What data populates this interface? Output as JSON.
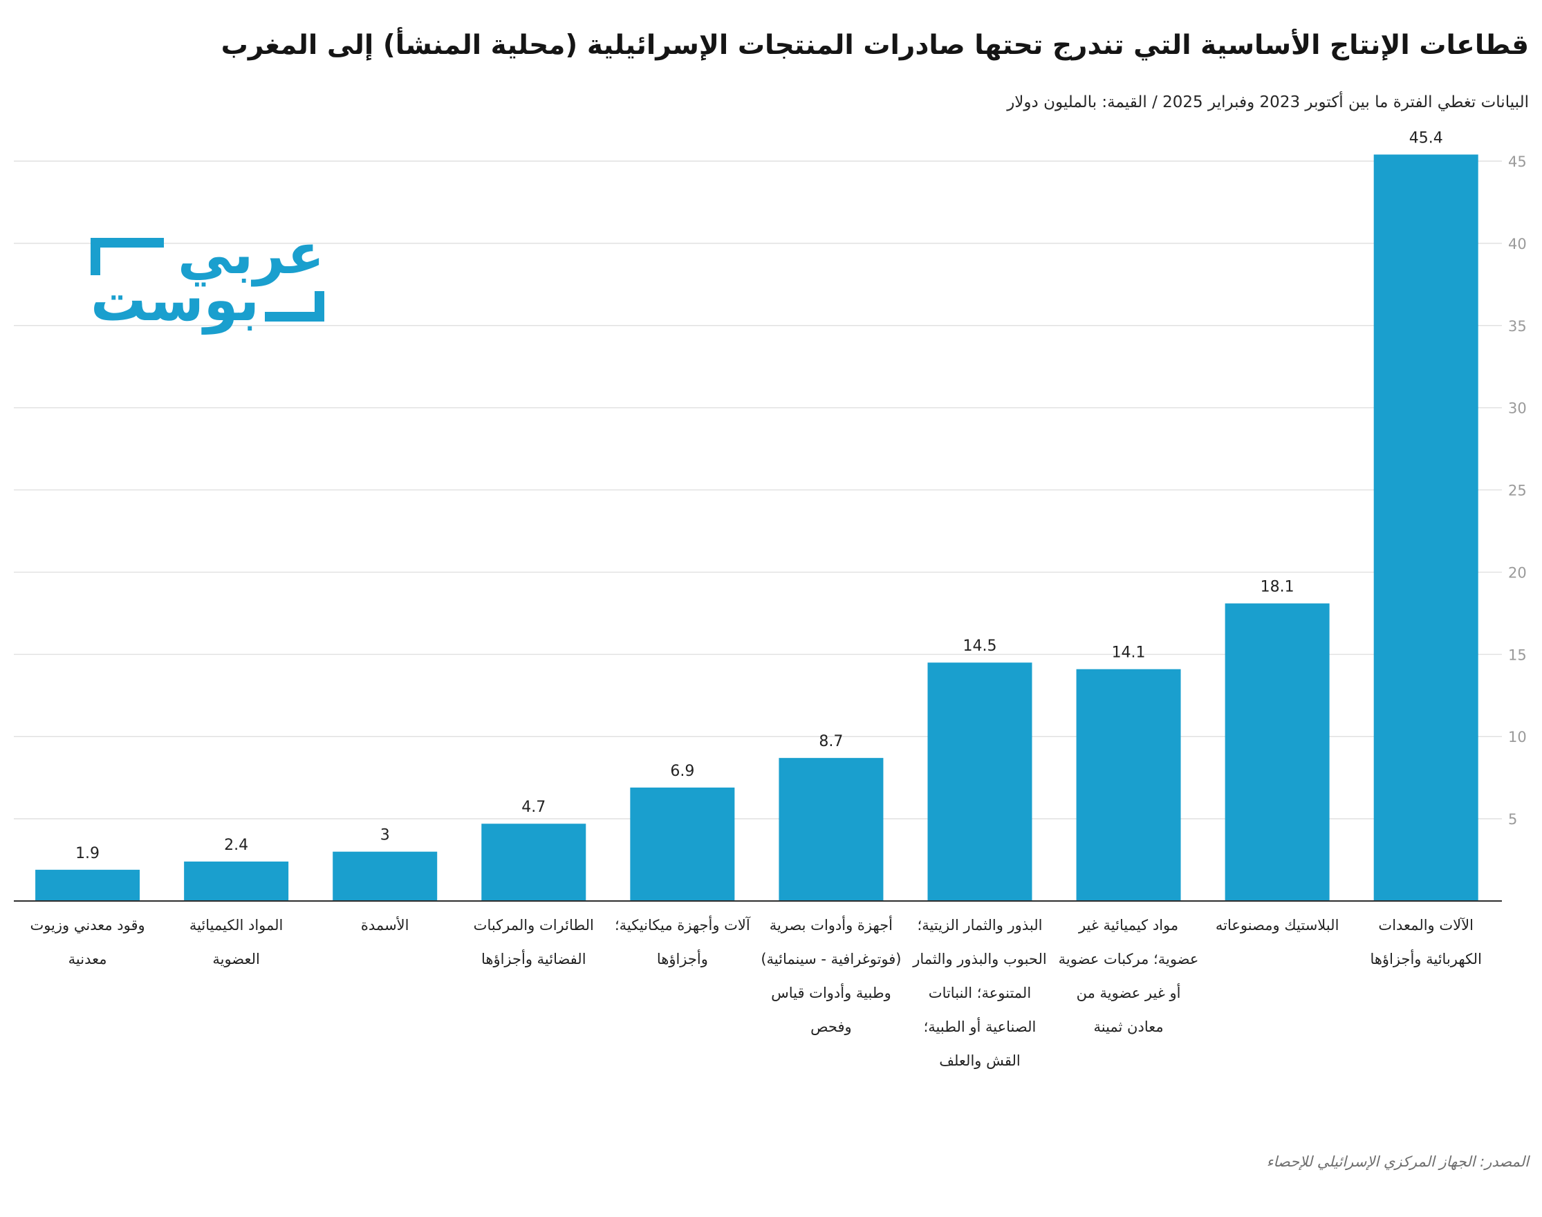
{
  "logo": {
    "line1": "عربي",
    "line2": "بوست",
    "color": "#1a9fce"
  },
  "colors": {
    "bar": "#1a9fce",
    "grid": "#e1e1e1",
    "axis": "#2e2e2e",
    "tick": "#9a9a9a",
    "text": "#222222"
  },
  "chart_data": {
    "type": "bar",
    "title": "قطاعات الإنتاج الأساسية التي تندرج تحتها صادرات المنتجات الإسرائيلية (محلية المنشأ) إلى المغرب",
    "subtitle": "البيانات تغطي الفترة ما بين أكتوبر 2023 وفبراير 2025 / القيمة: بالمليون دولار",
    "source": "المصدر: الجهاز المركزي الإسرائيلي للإحصاء",
    "category_order": "right-to-left",
    "y_axis_side": "right",
    "grid": true,
    "data_labels": true,
    "categories": [
      "الآلات والمعدات الكهربائية وأجزاؤها",
      "البلاستيك ومصنوعاته",
      "مواد كيميائية غير عضوية؛ مركبات عضوية أو غير عضوية من معادن ثمينة",
      "البذور والثمار الزيتية؛ الحبوب والبذور والثمار المتنوعة؛ النباتات الصناعية أو الطبية؛ القش والعلف",
      "أجهزة وأدوات بصرية (فوتوغرافية - سينمائية) وطبية وأدوات قياس وفحص",
      "آلات وأجهزة ميكانيكية؛ وأجزاؤها",
      "الطائرات والمركبات الفضائية وأجزاؤها",
      "الأسمدة",
      "المواد الكيميائية العضوية",
      "وقود معدني وزيوت معدنية"
    ],
    "values": [
      45.4,
      18.1,
      14.1,
      14.5,
      8.7,
      6.9,
      4.7,
      3,
      2.4,
      1.9
    ],
    "yticks": [
      5,
      10,
      15,
      20,
      25,
      30,
      35,
      40,
      45
    ],
    "ylim": [
      0,
      45
    ]
  }
}
